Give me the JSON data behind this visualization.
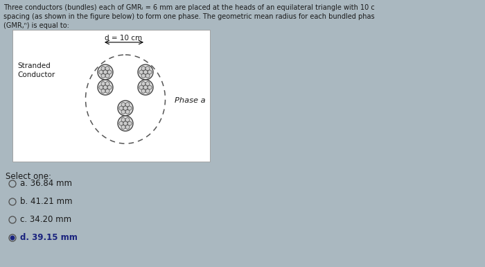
{
  "title_lines": [
    "Three conductors (bundles) each of GMRᵢ = 6 mm are placed at the heads of an equilateral triangle with 10 c",
    "spacing (as shown in the figure below) to form one phase. The geometric mean radius for each bundled phas",
    "(GMR,ⁿ) is equal to:"
  ],
  "label_stranded": "Stranded\nConductor",
  "label_d": "d = 10 cm",
  "label_phase": "Phase a",
  "select_one": "Select one:",
  "options": [
    "a. 36.84 mm",
    "b. 41.21 mm",
    "c. 34.20 mm",
    "d. 39.15 mm"
  ],
  "correct_index": 3,
  "bg_color": "#aab8c0",
  "box_bg": "#ffffff",
  "text_color": "#1a1a1a",
  "conductor_color": "#444444",
  "dashed_color": "#555555",
  "selected_color": "#1a237e"
}
